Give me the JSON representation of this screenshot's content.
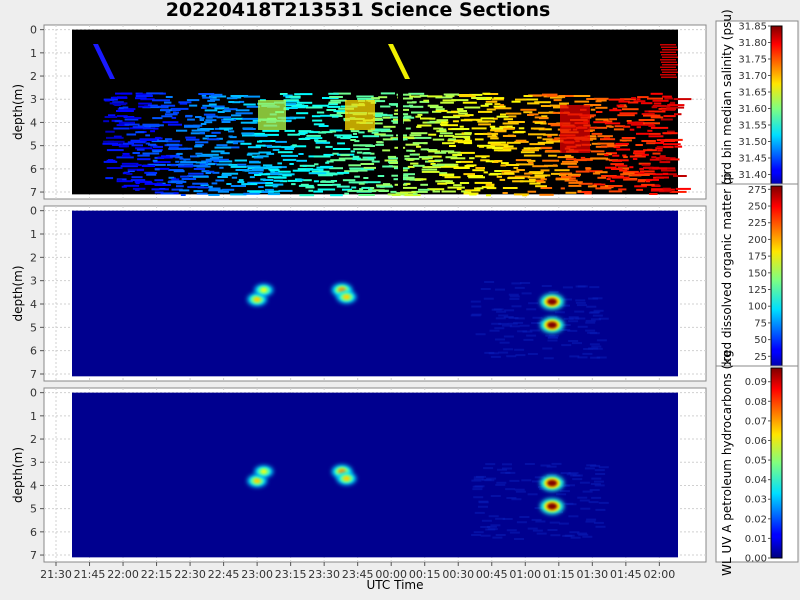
{
  "title": "20220418T213531 Science Sections",
  "colors": {
    "page_bg": "#eeeeee",
    "plot_bg": "#ffffff",
    "grid": "#d0d0d0",
    "frame": "#888888"
  },
  "chart_data": [
    {
      "type": "heatmap",
      "name": "salinity-panel",
      "ylabel": "depth(m)",
      "xlabel": "",
      "ylim": [
        7.3,
        -0.2
      ],
      "yticks": [
        "0",
        "1",
        "2",
        "3",
        "4",
        "5",
        "6",
        "7"
      ],
      "background": "#000000",
      "colorbar": {
        "label": "Seabird bin median salinity (psu)",
        "range": [
          31.35,
          31.85
        ],
        "ticks": [
          "31.85",
          "31.80",
          "31.75",
          "31.70",
          "31.65",
          "31.60",
          "31.55",
          "31.50",
          "31.45",
          "31.40"
        ]
      }
    },
    {
      "type": "heatmap",
      "name": "cdom-panel",
      "ylabel": "depth(m)",
      "xlabel": "",
      "ylim": [
        7.3,
        -0.2
      ],
      "yticks": [
        "0",
        "1",
        "2",
        "3",
        "4",
        "5",
        "6",
        "7"
      ],
      "background": "#00008f",
      "hotspots": [
        {
          "time": "23:00",
          "depth": 3.8,
          "level": 0.45
        },
        {
          "time": "23:03",
          "depth": 3.4,
          "level": 0.35
        },
        {
          "time": "23:38",
          "depth": 3.4,
          "level": 0.55
        },
        {
          "time": "23:40",
          "depth": 3.7,
          "level": 0.45
        },
        {
          "time": "01:12",
          "depth": 3.9,
          "level": 1.0
        },
        {
          "time": "01:12",
          "depth": 4.9,
          "level": 1.0
        }
      ],
      "colorbar": {
        "label": "colored dissolved organic matter (p",
        "range": [
          0,
          280
        ],
        "ticks": [
          "275",
          "250",
          "225",
          "200",
          "175",
          "150",
          "125",
          "100",
          "75",
          "50",
          "25",
          "0"
        ]
      }
    },
    {
      "type": "heatmap",
      "name": "hydrocarbon-panel",
      "ylabel": "depth(m)",
      "xlabel": "UTC Time",
      "ylim": [
        7.3,
        -0.2
      ],
      "yticks": [
        "0",
        "1",
        "2",
        "3",
        "4",
        "5",
        "6",
        "7"
      ],
      "background": "#00008f",
      "xticks": [
        "21:30",
        "21:45",
        "22:00",
        "22:15",
        "22:30",
        "22:45",
        "23:00",
        "23:15",
        "23:30",
        "23:45",
        "00:00",
        "00:15",
        "00:30",
        "00:45",
        "01:00",
        "01:15",
        "01:30",
        "01:45",
        "02:00"
      ],
      "hotspots": [
        {
          "time": "23:00",
          "depth": 3.8,
          "level": 0.45
        },
        {
          "time": "23:03",
          "depth": 3.4,
          "level": 0.35
        },
        {
          "time": "23:38",
          "depth": 3.4,
          "level": 0.55
        },
        {
          "time": "23:40",
          "depth": 3.7,
          "level": 0.45
        },
        {
          "time": "01:12",
          "depth": 3.9,
          "level": 1.0
        },
        {
          "time": "01:12",
          "depth": 4.9,
          "level": 1.0
        }
      ],
      "colorbar": {
        "label": "WL UV A petroleum hydrocarbons (kg",
        "range": [
          0,
          0.097
        ],
        "ticks": [
          "0.09",
          "0.08",
          "0.07",
          "0.06",
          "0.05",
          "0.04",
          "0.03",
          "0.02",
          "0.01",
          "0.00"
        ]
      }
    }
  ]
}
